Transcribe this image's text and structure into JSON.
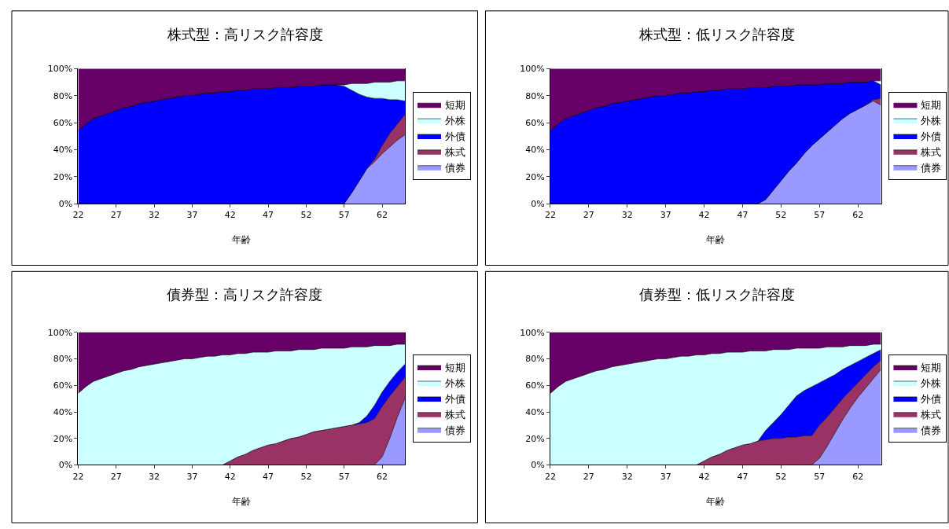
{
  "chart_data": [
    {
      "type": "area",
      "title": "株式型：高リスク許容度",
      "xlabel": "年齢",
      "stacked": true,
      "legend": "right",
      "grid": false,
      "xlim": [
        22,
        65
      ],
      "xticks": [
        22,
        27,
        32,
        37,
        42,
        47,
        52,
        57,
        62
      ],
      "ylim": [
        0,
        100
      ],
      "yticks": [
        {
          "value": 0,
          "label": "0%"
        },
        {
          "value": 20,
          "label": "20%"
        },
        {
          "value": 40,
          "label": "40%"
        },
        {
          "value": 60,
          "label": "60%"
        },
        {
          "value": 80,
          "label": "80%"
        },
        {
          "value": 100,
          "label": "100%"
        }
      ],
      "x": [
        22,
        23,
        24,
        25,
        26,
        27,
        28,
        29,
        30,
        31,
        32,
        33,
        34,
        35,
        36,
        37,
        38,
        39,
        40,
        41,
        42,
        43,
        44,
        45,
        46,
        47,
        48,
        49,
        50,
        51,
        52,
        53,
        54,
        55,
        56,
        57,
        58,
        59,
        60,
        61,
        62,
        63,
        64,
        65
      ],
      "series": [
        {
          "name": "債券",
          "color": "#9999ff",
          "values": [
            0,
            0,
            0,
            0,
            0,
            0,
            0,
            0,
            0,
            0,
            0,
            0,
            0,
            0,
            0,
            0,
            0,
            0,
            0,
            0,
            0,
            0,
            0,
            0,
            0,
            0,
            0,
            0,
            0,
            0,
            0,
            0,
            0,
            0,
            0,
            0,
            8,
            17,
            26,
            31,
            37,
            42,
            47,
            51
          ]
        },
        {
          "name": "株式",
          "color": "#993366",
          "values": [
            0,
            0,
            0,
            0,
            0,
            0,
            0,
            0,
            0,
            0,
            0,
            0,
            0,
            0,
            0,
            0,
            0,
            0,
            0,
            0,
            0,
            0,
            0,
            0,
            0,
            0,
            0,
            0,
            0,
            0,
            0,
            0,
            0,
            0,
            0,
            0,
            0,
            0,
            0,
            2,
            6,
            10,
            12,
            15
          ]
        },
        {
          "name": "外債",
          "color": "#0000ff",
          "values": [
            54,
            59,
            63,
            65,
            67,
            69,
            71,
            72,
            74,
            75,
            76,
            77,
            78,
            79,
            80,
            80,
            81,
            82,
            82,
            83,
            83,
            84,
            84,
            85,
            85,
            85,
            86,
            86,
            86,
            87,
            87,
            87,
            88,
            88,
            88,
            87,
            76,
            64,
            53,
            45,
            35,
            25,
            18,
            10
          ]
        },
        {
          "name": "外株",
          "color": "#ccffff",
          "values": [
            0,
            0,
            0,
            0,
            0,
            0,
            0,
            0,
            0,
            0,
            0,
            0,
            0,
            0,
            0,
            0,
            0,
            0,
            0,
            0,
            0,
            0,
            0,
            0,
            0,
            0,
            0,
            0,
            0,
            0,
            0,
            0,
            0,
            0,
            0,
            1,
            5,
            8,
            10,
            12,
            12,
            13,
            14,
            15
          ]
        },
        {
          "name": "短期",
          "color": "#660066",
          "values": [
            46,
            41,
            37,
            35,
            33,
            31,
            29,
            28,
            26,
            25,
            24,
            23,
            22,
            21,
            20,
            20,
            19,
            18,
            18,
            17,
            17,
            16,
            16,
            15,
            15,
            15,
            14,
            14,
            14,
            13,
            13,
            13,
            12,
            12,
            12,
            12,
            11,
            11,
            11,
            10,
            10,
            10,
            9,
            9
          ]
        }
      ]
    },
    {
      "type": "area",
      "title": "株式型：低リスク許容度",
      "xlabel": "年齢",
      "stacked": true,
      "legend": "right",
      "grid": false,
      "xlim": [
        22,
        65
      ],
      "xticks": [
        22,
        27,
        32,
        37,
        42,
        47,
        52,
        57,
        62
      ],
      "ylim": [
        0,
        100
      ],
      "yticks": [
        {
          "value": 0,
          "label": "0%"
        },
        {
          "value": 20,
          "label": "20%"
        },
        {
          "value": 40,
          "label": "40%"
        },
        {
          "value": 60,
          "label": "60%"
        },
        {
          "value": 80,
          "label": "80%"
        },
        {
          "value": 100,
          "label": "100%"
        }
      ],
      "x": [
        22,
        23,
        24,
        25,
        26,
        27,
        28,
        29,
        30,
        31,
        32,
        33,
        34,
        35,
        36,
        37,
        38,
        39,
        40,
        41,
        42,
        43,
        44,
        45,
        46,
        47,
        48,
        49,
        50,
        51,
        52,
        53,
        54,
        55,
        56,
        57,
        58,
        59,
        60,
        61,
        62,
        63,
        64,
        65
      ],
      "series": [
        {
          "name": "債券",
          "color": "#9999ff",
          "values": [
            0,
            0,
            0,
            0,
            0,
            0,
            0,
            0,
            0,
            0,
            0,
            0,
            0,
            0,
            0,
            0,
            0,
            0,
            0,
            0,
            0,
            0,
            0,
            0,
            0,
            0,
            0,
            0,
            3,
            10,
            17,
            24,
            30,
            37,
            43,
            48,
            53,
            58,
            63,
            67,
            70,
            73,
            76,
            73
          ]
        },
        {
          "name": "株式",
          "color": "#993366",
          "values": [
            0,
            0,
            0,
            0,
            0,
            0,
            0,
            0,
            0,
            0,
            0,
            0,
            0,
            0,
            0,
            0,
            0,
            0,
            0,
            0,
            0,
            0,
            0,
            0,
            0,
            0,
            0,
            0,
            0,
            0,
            0,
            0,
            0,
            0,
            0,
            0,
            0,
            0,
            0,
            0,
            0,
            0,
            1,
            5
          ]
        },
        {
          "name": "外債",
          "color": "#0000ff",
          "values": [
            54,
            59,
            63,
            65,
            67,
            69,
            71,
            72,
            74,
            75,
            76,
            77,
            78,
            79,
            80,
            80,
            81,
            82,
            82,
            83,
            83,
            84,
            84,
            85,
            85,
            85,
            86,
            86,
            83,
            77,
            70,
            63,
            58,
            51,
            45,
            40,
            36,
            31,
            26,
            23,
            20,
            17,
            14,
            10
          ]
        },
        {
          "name": "外株",
          "color": "#ccffff",
          "values": [
            0,
            0,
            0,
            0,
            0,
            0,
            0,
            0,
            0,
            0,
            0,
            0,
            0,
            0,
            0,
            0,
            0,
            0,
            0,
            0,
            0,
            0,
            0,
            0,
            0,
            0,
            0,
            0,
            0,
            0,
            0,
            0,
            0,
            0,
            0,
            0,
            0,
            0,
            0,
            0,
            0,
            0,
            0,
            3
          ]
        },
        {
          "name": "短期",
          "color": "#660066",
          "values": [
            46,
            41,
            37,
            35,
            33,
            31,
            29,
            28,
            26,
            25,
            24,
            23,
            22,
            21,
            20,
            20,
            19,
            18,
            18,
            17,
            17,
            16,
            16,
            15,
            15,
            15,
            14,
            14,
            14,
            13,
            13,
            13,
            12,
            12,
            12,
            12,
            11,
            11,
            11,
            10,
            10,
            10,
            9,
            9
          ]
        }
      ]
    },
    {
      "type": "area",
      "title": "債券型：高リスク許容度",
      "xlabel": "年齢",
      "stacked": true,
      "legend": "right",
      "grid": false,
      "xlim": [
        22,
        65
      ],
      "xticks": [
        22,
        27,
        32,
        37,
        42,
        47,
        52,
        57,
        62
      ],
      "ylim": [
        0,
        100
      ],
      "yticks": [
        {
          "value": 0,
          "label": "0%"
        },
        {
          "value": 20,
          "label": "20%"
        },
        {
          "value": 40,
          "label": "40%"
        },
        {
          "value": 60,
          "label": "60%"
        },
        {
          "value": 80,
          "label": "80%"
        },
        {
          "value": 100,
          "label": "100%"
        }
      ],
      "x": [
        22,
        23,
        24,
        25,
        26,
        27,
        28,
        29,
        30,
        31,
        32,
        33,
        34,
        35,
        36,
        37,
        38,
        39,
        40,
        41,
        42,
        43,
        44,
        45,
        46,
        47,
        48,
        49,
        50,
        51,
        52,
        53,
        54,
        55,
        56,
        57,
        58,
        59,
        60,
        61,
        62,
        63,
        64,
        65
      ],
      "series": [
        {
          "name": "債券",
          "color": "#9999ff",
          "values": [
            0,
            0,
            0,
            0,
            0,
            0,
            0,
            0,
            0,
            0,
            0,
            0,
            0,
            0,
            0,
            0,
            0,
            0,
            0,
            0,
            0,
            0,
            0,
            0,
            0,
            0,
            0,
            0,
            0,
            0,
            0,
            0,
            0,
            0,
            0,
            0,
            0,
            0,
            0,
            0,
            6,
            20,
            36,
            50
          ]
        },
        {
          "name": "株式",
          "color": "#993366",
          "values": [
            0,
            0,
            0,
            0,
            0,
            0,
            0,
            0,
            0,
            0,
            0,
            0,
            0,
            0,
            0,
            0,
            0,
            0,
            0,
            0,
            3,
            6,
            8,
            11,
            13,
            15,
            16,
            18,
            20,
            21,
            23,
            25,
            26,
            27,
            28,
            29,
            30,
            31,
            32,
            35,
            38,
            32,
            23,
            16
          ]
        },
        {
          "name": "外債",
          "color": "#0000ff",
          "values": [
            0,
            0,
            0,
            0,
            0,
            0,
            0,
            0,
            0,
            0,
            0,
            0,
            0,
            0,
            0,
            0,
            0,
            0,
            0,
            0,
            0,
            0,
            0,
            0,
            0,
            0,
            0,
            0,
            0,
            0,
            0,
            0,
            0,
            0,
            0,
            0,
            0,
            1,
            5,
            10,
            11,
            11,
            11,
            10
          ]
        },
        {
          "name": "外株",
          "color": "#ccffff",
          "values": [
            54,
            59,
            63,
            65,
            67,
            69,
            71,
            72,
            74,
            75,
            76,
            77,
            78,
            79,
            80,
            80,
            81,
            82,
            82,
            83,
            80,
            78,
            76,
            74,
            72,
            70,
            70,
            68,
            66,
            66,
            64,
            62,
            62,
            61,
            60,
            59,
            59,
            57,
            52,
            45,
            35,
            27,
            21,
            15
          ]
        },
        {
          "name": "短期",
          "color": "#660066",
          "values": [
            46,
            41,
            37,
            35,
            33,
            31,
            29,
            28,
            26,
            25,
            24,
            23,
            22,
            21,
            20,
            20,
            19,
            18,
            18,
            17,
            17,
            16,
            16,
            15,
            15,
            15,
            14,
            14,
            14,
            13,
            13,
            13,
            12,
            12,
            12,
            12,
            11,
            11,
            11,
            10,
            10,
            10,
            9,
            9
          ]
        }
      ]
    },
    {
      "type": "area",
      "title": "債券型：低リスク許容度",
      "xlabel": "年齢",
      "stacked": true,
      "legend": "right",
      "grid": false,
      "xlim": [
        22,
        65
      ],
      "xticks": [
        22,
        27,
        32,
        37,
        42,
        47,
        52,
        57,
        62
      ],
      "ylim": [
        0,
        100
      ],
      "yticks": [
        {
          "value": 0,
          "label": "0%"
        },
        {
          "value": 20,
          "label": "20%"
        },
        {
          "value": 40,
          "label": "40%"
        },
        {
          "value": 60,
          "label": "60%"
        },
        {
          "value": 80,
          "label": "80%"
        },
        {
          "value": 100,
          "label": "100%"
        }
      ],
      "x": [
        22,
        23,
        24,
        25,
        26,
        27,
        28,
        29,
        30,
        31,
        32,
        33,
        34,
        35,
        36,
        37,
        38,
        39,
        40,
        41,
        42,
        43,
        44,
        45,
        46,
        47,
        48,
        49,
        50,
        51,
        52,
        53,
        54,
        55,
        56,
        57,
        58,
        59,
        60,
        61,
        62,
        63,
        64,
        65
      ],
      "series": [
        {
          "name": "債券",
          "color": "#9999ff",
          "values": [
            0,
            0,
            0,
            0,
            0,
            0,
            0,
            0,
            0,
            0,
            0,
            0,
            0,
            0,
            0,
            0,
            0,
            0,
            0,
            0,
            0,
            0,
            0,
            0,
            0,
            0,
            0,
            0,
            0,
            0,
            0,
            0,
            0,
            0,
            0,
            5,
            14,
            24,
            34,
            43,
            51,
            58,
            65,
            72
          ]
        },
        {
          "name": "株式",
          "color": "#993366",
          "values": [
            0,
            0,
            0,
            0,
            0,
            0,
            0,
            0,
            0,
            0,
            0,
            0,
            0,
            0,
            0,
            0,
            0,
            0,
            0,
            0,
            3,
            6,
            8,
            11,
            13,
            15,
            16,
            18,
            19,
            20,
            20,
            21,
            21,
            22,
            22,
            25,
            22,
            19,
            16,
            13,
            11,
            10,
            9,
            7
          ]
        },
        {
          "name": "外債",
          "color": "#0000ff",
          "values": [
            0,
            0,
            0,
            0,
            0,
            0,
            0,
            0,
            0,
            0,
            0,
            0,
            0,
            0,
            0,
            0,
            0,
            0,
            0,
            0,
            0,
            0,
            0,
            0,
            0,
            0,
            0,
            0,
            7,
            12,
            18,
            24,
            31,
            34,
            37,
            32,
            29,
            25,
            22,
            19,
            16,
            13,
            10,
            8
          ]
        },
        {
          "name": "外株",
          "color": "#ccffff",
          "values": [
            54,
            59,
            63,
            65,
            67,
            69,
            71,
            72,
            74,
            75,
            76,
            77,
            78,
            79,
            80,
            80,
            81,
            82,
            82,
            83,
            80,
            78,
            76,
            74,
            72,
            70,
            70,
            68,
            60,
            55,
            49,
            42,
            36,
            32,
            29,
            26,
            24,
            21,
            17,
            15,
            12,
            9,
            7,
            4
          ]
        },
        {
          "name": "短期",
          "color": "#660066",
          "values": [
            46,
            41,
            37,
            35,
            33,
            31,
            29,
            28,
            26,
            25,
            24,
            23,
            22,
            21,
            20,
            20,
            19,
            18,
            18,
            17,
            17,
            16,
            16,
            15,
            15,
            15,
            14,
            14,
            14,
            13,
            13,
            13,
            12,
            12,
            12,
            12,
            11,
            11,
            11,
            10,
            10,
            10,
            9,
            9
          ]
        }
      ]
    }
  ]
}
